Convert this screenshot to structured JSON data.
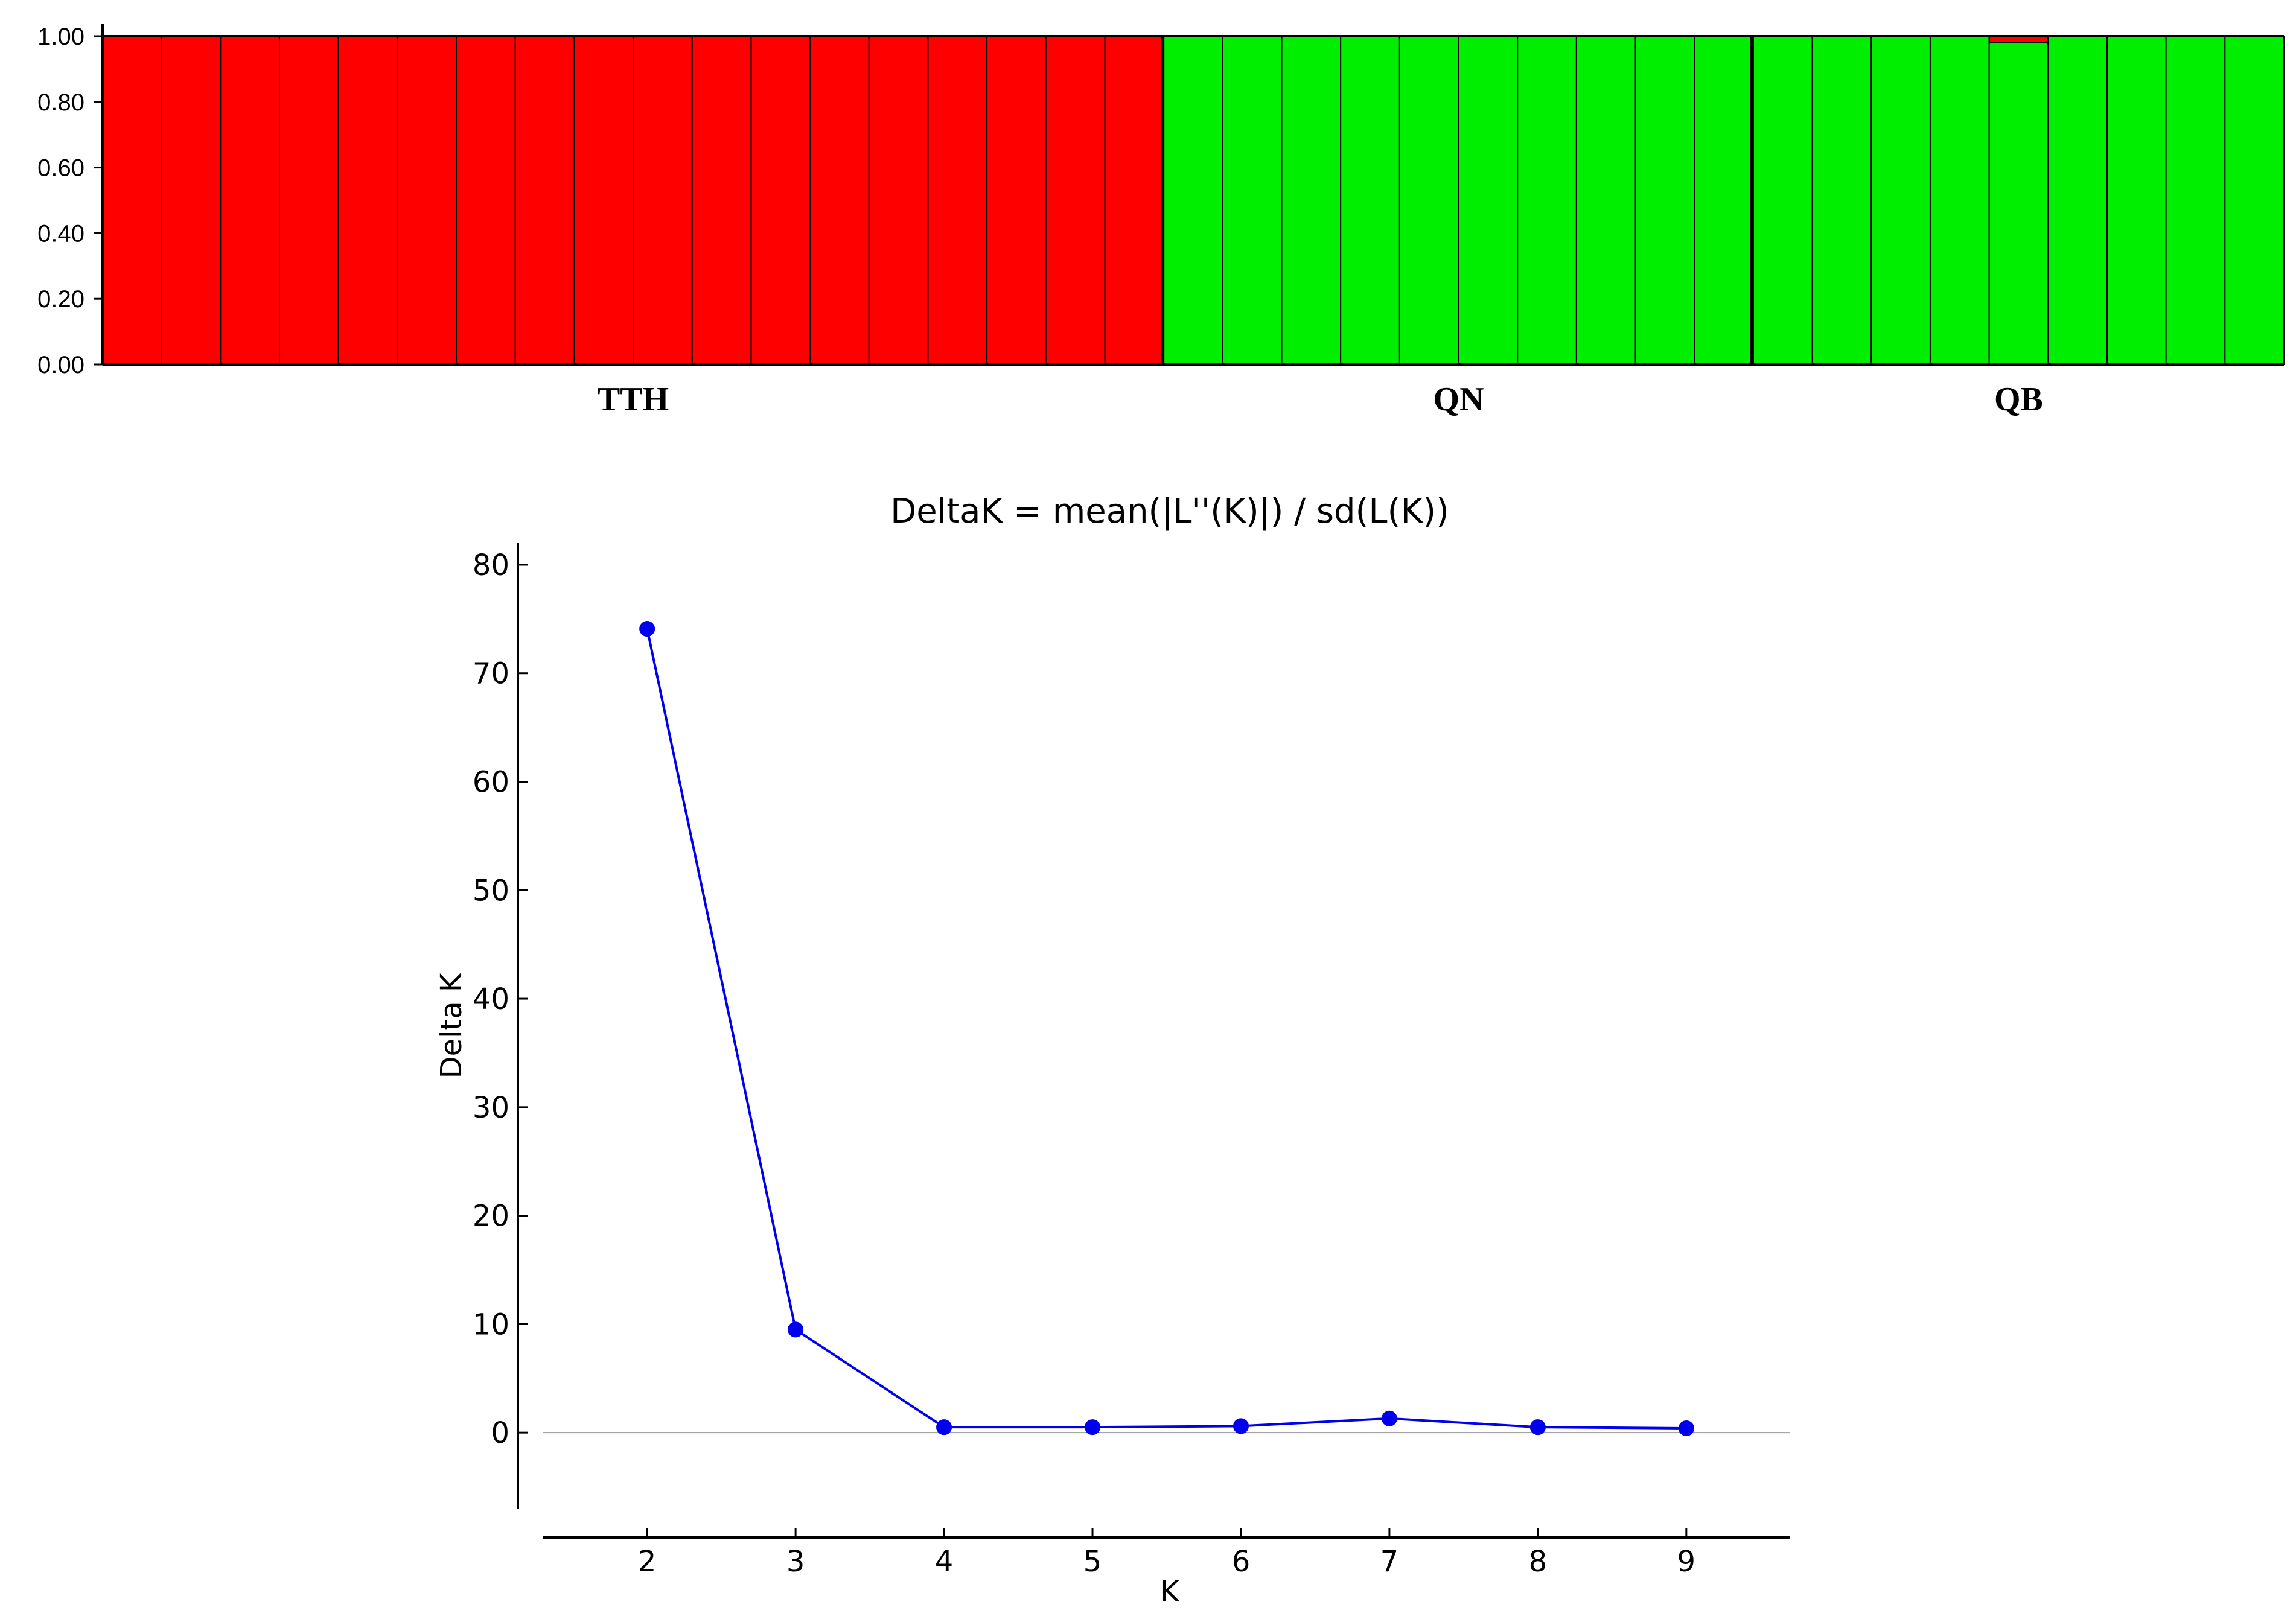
{
  "colors": {
    "cluster1": "#ff0000",
    "cluster2": "#00ee00",
    "line": "#0000ee",
    "axis": "#000000",
    "zero_line": "#999999"
  },
  "chart_data": [
    {
      "type": "bar",
      "subtype": "stacked-admixture",
      "title": "",
      "ylim": [
        0,
        1
      ],
      "yticks": [
        "0.00",
        "0.20",
        "0.40",
        "0.60",
        "0.80",
        "1.00"
      ],
      "populations": [
        {
          "name": "TTH",
          "n": 18,
          "cluster1": 1.0,
          "cluster2": 0.0
        },
        {
          "name": "QN",
          "n": 10,
          "cluster1": 0.0,
          "cluster2": 1.0
        },
        {
          "name": "QB",
          "n": 9,
          "cluster1": 0.0,
          "cluster2": 1.0
        }
      ],
      "special": [
        {
          "population": "QB",
          "index": 4,
          "cluster1": 0.02,
          "cluster2": 0.98
        }
      ]
    },
    {
      "type": "line",
      "title": "DeltaK = mean(|L''(K)|) / sd(L(K))",
      "xlabel": "K",
      "ylabel": "Delta K",
      "x": [
        2,
        3,
        4,
        5,
        6,
        7,
        8,
        9
      ],
      "xticks": [
        "2",
        "3",
        "4",
        "5",
        "6",
        "7",
        "8",
        "9"
      ],
      "yticks": [
        "0",
        "10",
        "20",
        "30",
        "40",
        "50",
        "60",
        "70",
        "80"
      ],
      "xlim": [
        1.3,
        9.7
      ],
      "ylim": [
        -7,
        82
      ],
      "series": [
        {
          "values": [
            74.1,
            9.5,
            0.5,
            0.5,
            0.6,
            1.3,
            0.5,
            0.4
          ]
        }
      ]
    }
  ]
}
